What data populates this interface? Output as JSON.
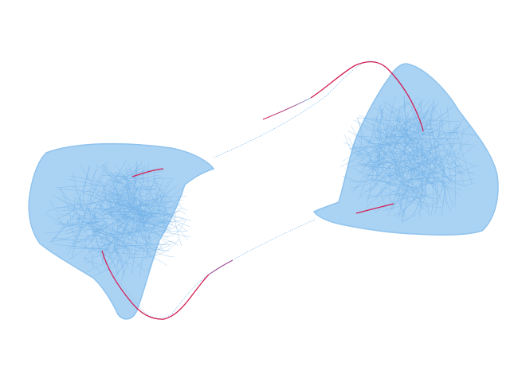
{
  "colors": {
    "background": "#ffffff",
    "lobe_fill": "#9ecbf0",
    "lobe_line": "#8fc3ee",
    "strand": "#7fb8e8",
    "accent": "#d11f54",
    "accent_mid": "#8a4fa0"
  },
  "figure": {
    "description_name": "twin-lobed-manifold-rendering"
  }
}
